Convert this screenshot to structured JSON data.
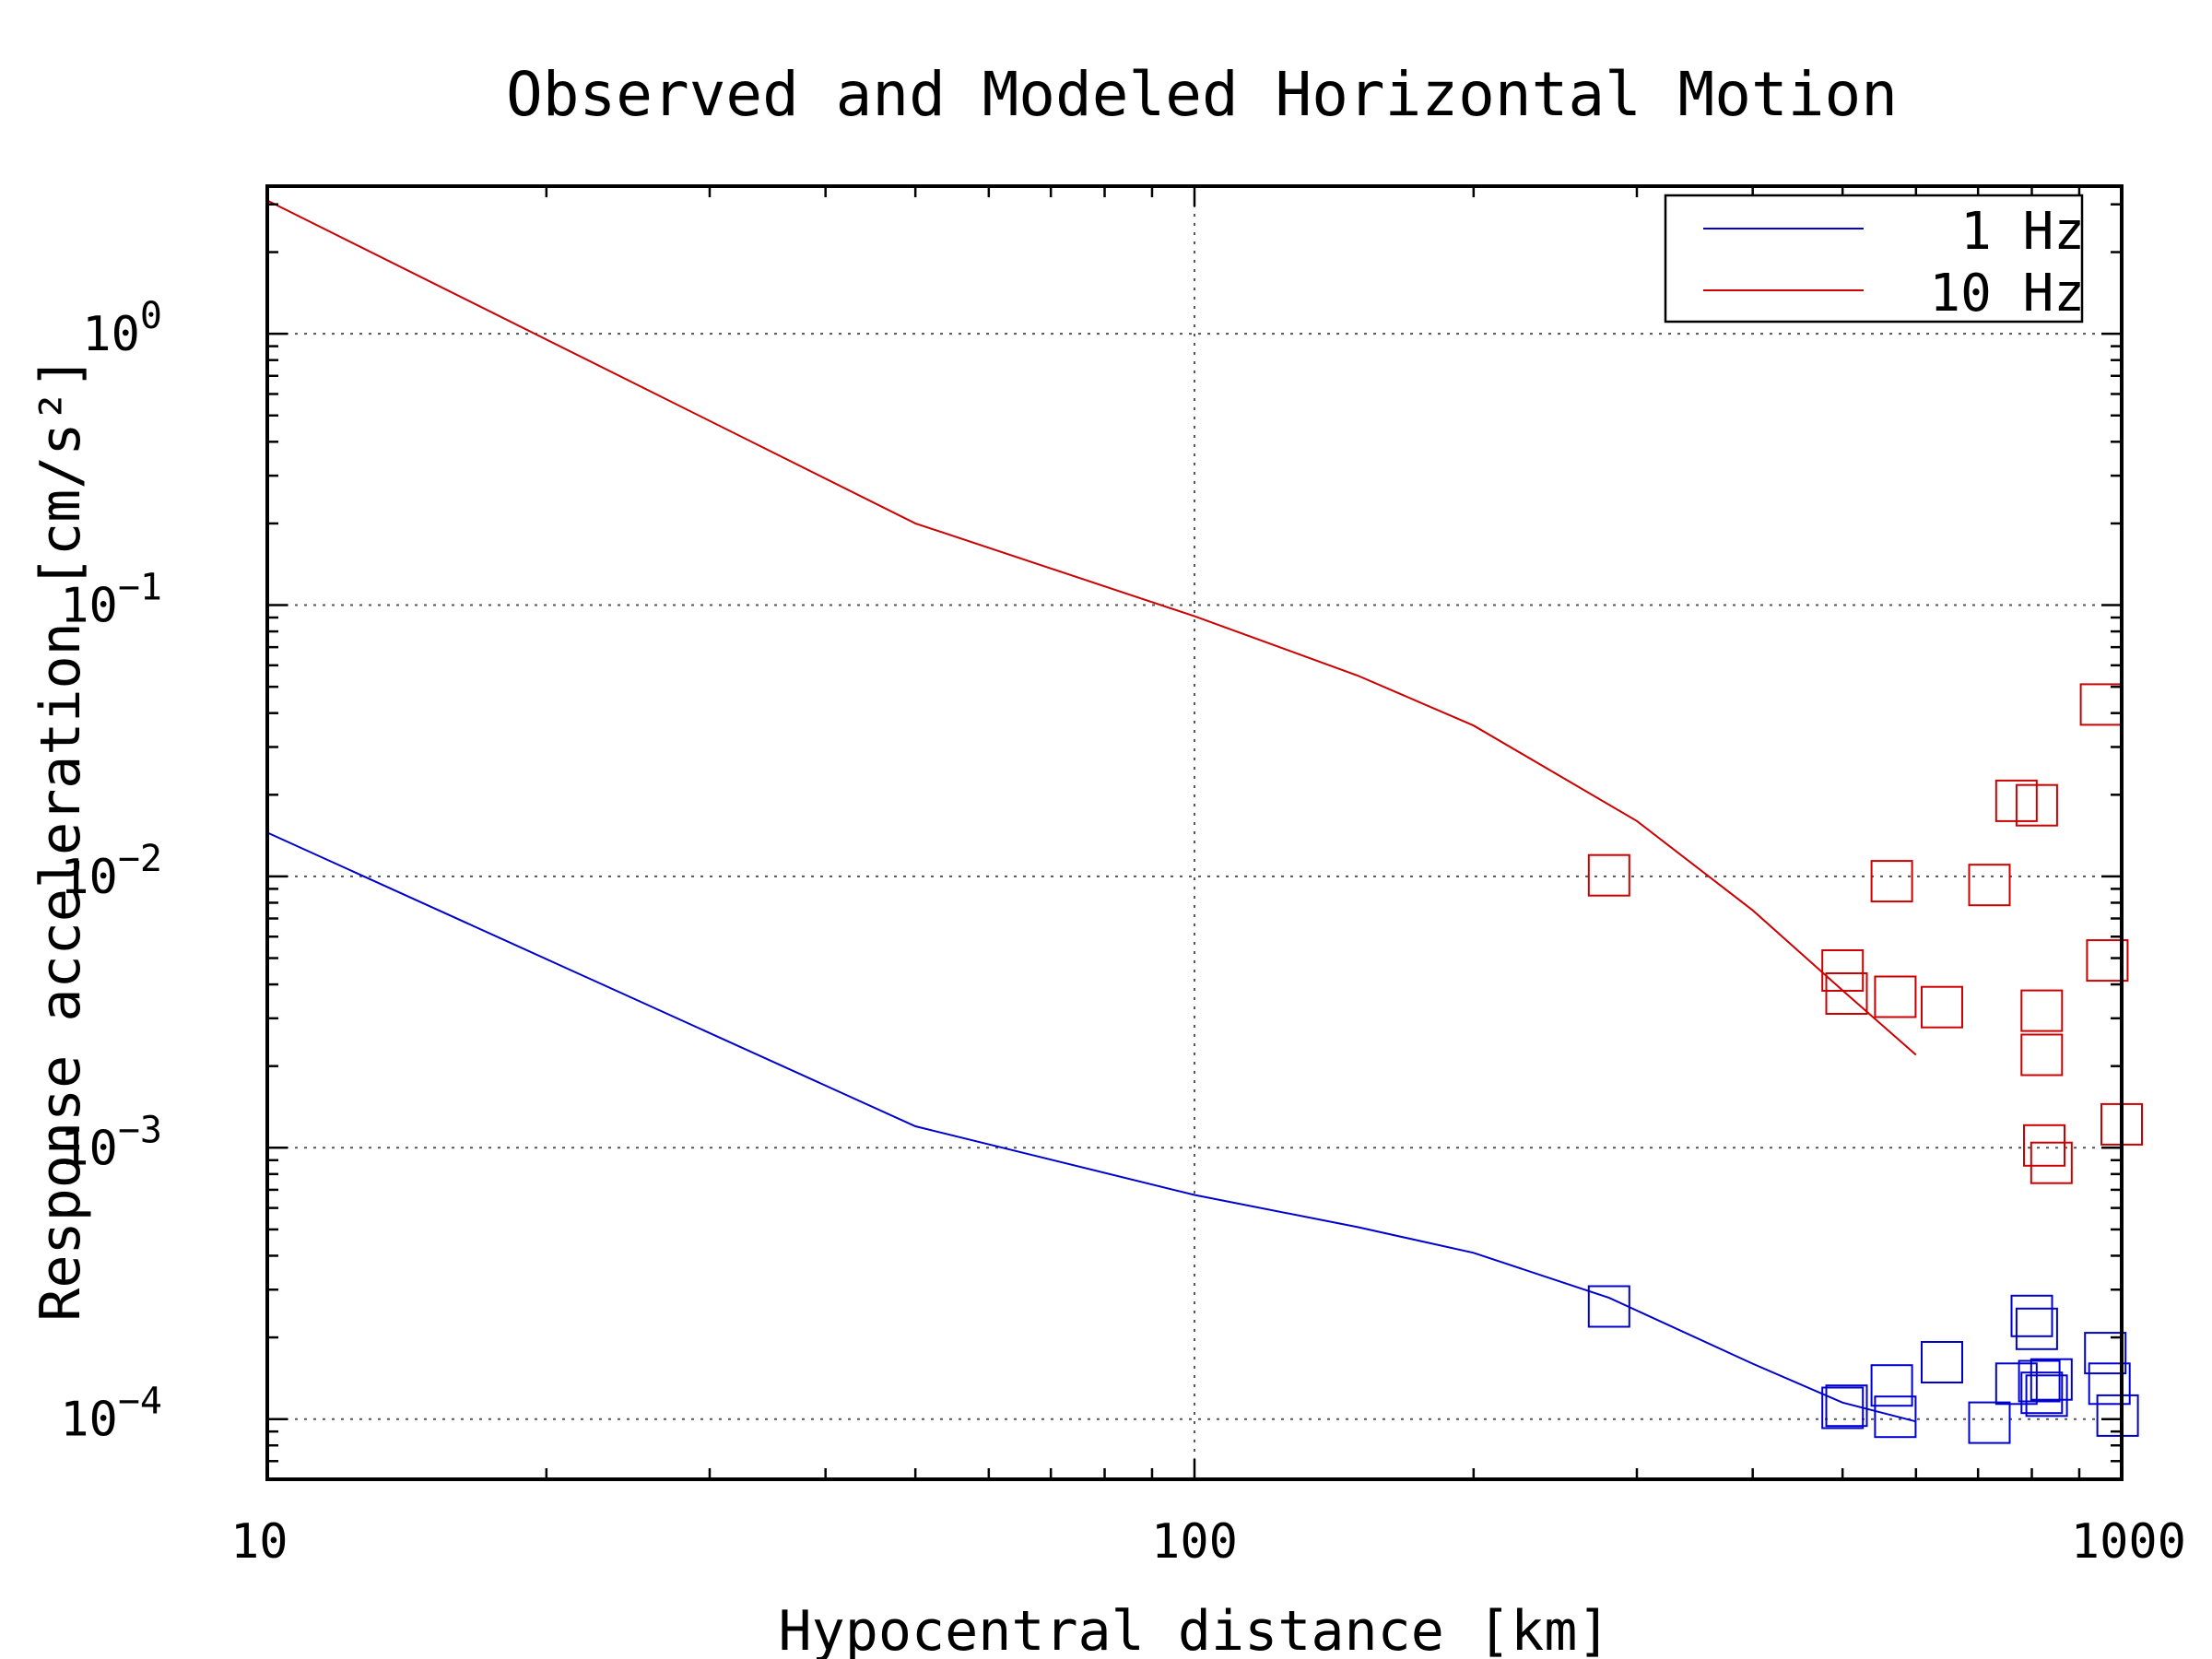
{
  "chart_data": {
    "type": "scatter",
    "title": "Observed and Modeled Horizontal Motion",
    "xlabel": "Hypocentral distance [km]",
    "ylabel": "Response acceleration [cm/s²]",
    "xscale": "log",
    "yscale": "log",
    "xlim": [
      10,
      1000
    ],
    "ylim": [
      6e-05,
      3.5
    ],
    "x_ticks": [
      {
        "value": 10,
        "label": "10"
      },
      {
        "value": 100,
        "label": "100"
      },
      {
        "value": 1000,
        "label": "1000"
      }
    ],
    "y_ticks": [
      {
        "value": 1,
        "base": "10",
        "exp": "0"
      },
      {
        "value": 0.1,
        "base": "10",
        "exp": "−1"
      },
      {
        "value": 0.01,
        "base": "10",
        "exp": "−2"
      },
      {
        "value": 0.001,
        "base": "10",
        "exp": "−3"
      },
      {
        "value": 0.0001,
        "base": "10",
        "exp": "−4"
      }
    ],
    "grid": true,
    "legend_position": "top-right",
    "series": [
      {
        "name": "1 Hz",
        "color": "#0000cc",
        "model_line": {
          "x": [
            10,
            50,
            100,
            150,
            200,
            280,
            400,
            500,
            600
          ],
          "y": [
            0.0145,
            0.0012,
            0.00067,
            0.00051,
            0.00041,
            0.00028,
            0.00016,
            0.000115,
            9.8e-05
          ]
        },
        "observed": {
          "x": [
            280,
            500,
            505,
            565,
            570,
            640,
            720,
            770,
            800,
            810,
            815,
            820,
            830,
            840,
            960,
            970,
            990
          ],
          "y": [
            0.00026,
            0.00011,
            0.000112,
            0.000133,
            0.000102,
            0.000162,
            9.7e-05,
            0.000135,
            0.00024,
            0.000215,
            0.000138,
            0.000125,
            0.000122,
            0.00014,
            0.000175,
            0.000135,
            0.000103
          ]
        }
      },
      {
        "name": "10 Hz",
        "color": "#cc0000",
        "model_line": {
          "x": [
            10,
            50,
            100,
            150,
            200,
            300,
            400,
            500,
            600
          ],
          "y": [
            3.1,
            0.2,
            0.091,
            0.055,
            0.036,
            0.016,
            0.0075,
            0.0038,
            0.0022
          ]
        },
        "observed": {
          "x": [
            280,
            500,
            505,
            565,
            570,
            640,
            720,
            770,
            810,
            820,
            820,
            825,
            840,
            950,
            965,
            1000
          ],
          "y": [
            0.0101,
            0.0045,
            0.0037,
            0.0096,
            0.0036,
            0.0033,
            0.0093,
            0.019,
            0.0183,
            0.0032,
            0.0022,
            0.00102,
            0.00088,
            0.043,
            0.0049,
            0.00122
          ]
        }
      }
    ]
  }
}
